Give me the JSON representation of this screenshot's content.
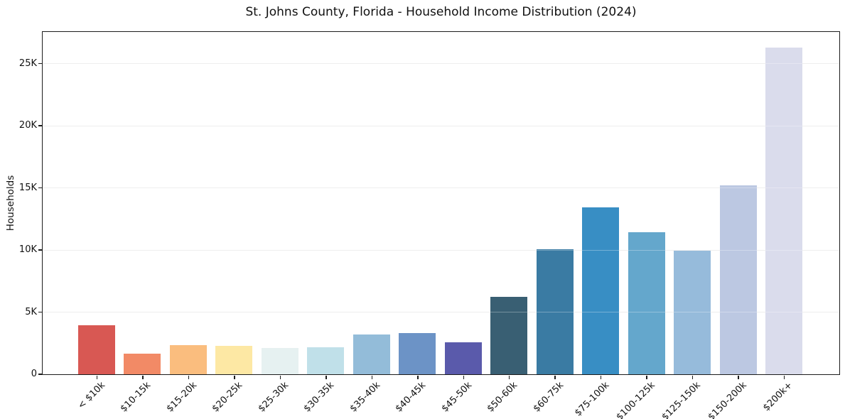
{
  "chart_data": {
    "type": "bar",
    "title": "St. Johns County, Florida - Household Income Distribution (2024)",
    "xlabel": "",
    "ylabel": "Households",
    "categories": [
      "< $10k",
      "$10-15k",
      "$15-20k",
      "$20-25k",
      "$25-30k",
      "$30-35k",
      "$35-40k",
      "$40-45k",
      "$45-50k",
      "$50-60k",
      "$60-75k",
      "$75-100k",
      "$100-125k",
      "$125-150k",
      "$150-200k",
      "$200k+"
    ],
    "values": [
      3940,
      1630,
      2290,
      2260,
      2070,
      2130,
      3200,
      3300,
      2550,
      6220,
      10050,
      13400,
      11400,
      9900,
      15150,
      26240
    ],
    "bar_colors": [
      "#d85853",
      "#f28a66",
      "#fabd7e",
      "#fde8a4",
      "#e6f1f1",
      "#c0e0e9",
      "#93bcd9",
      "#6c93c6",
      "#5a5aab",
      "#395f73",
      "#3a7ba3",
      "#388ec4",
      "#64a7cc",
      "#96bbdb",
      "#bcc8e2",
      "#dadcec"
    ],
    "yticks": [
      {
        "value": 0,
        "label": "0"
      },
      {
        "value": 5000,
        "label": "5K"
      },
      {
        "value": 10000,
        "label": "10K"
      },
      {
        "value": 15000,
        "label": "15K"
      },
      {
        "value": 20000,
        "label": "20K"
      },
      {
        "value": 25000,
        "label": "25K"
      }
    ],
    "ylim": [
      0,
      27550
    ],
    "grid": "horizontal",
    "legend": "none",
    "axis_color": "#1c1c1c",
    "gridline_color": "#e7e7e7",
    "background_color": "#ffffff"
  }
}
